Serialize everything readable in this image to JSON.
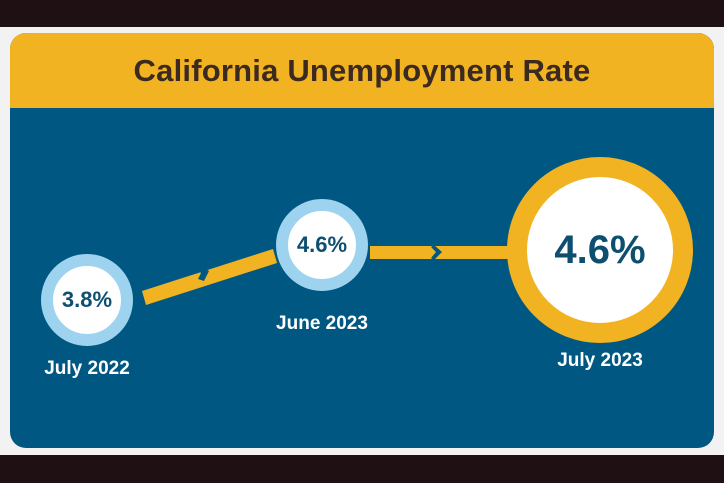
{
  "title": "California Unemployment Rate",
  "colors": {
    "panel": "#005882",
    "accent": "#f2b323",
    "ring_light": "#9ed3f0",
    "value_text": "#0e4f70",
    "title_text": "#3b2a20"
  },
  "points": [
    {
      "value": "3.8%",
      "label": "July 2022"
    },
    {
      "value": "4.6%",
      "label": "June 2023"
    },
    {
      "value": "4.6%",
      "label": "July 2023"
    }
  ]
}
